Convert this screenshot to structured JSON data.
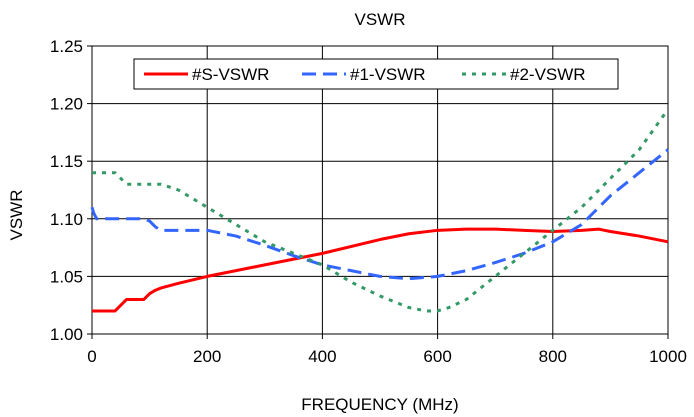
{
  "chart_data": {
    "type": "line",
    "title": "VSWR",
    "xlabel": "FREQUENCY (MHz)",
    "ylabel": "VSWR",
    "xlim": [
      0,
      1000
    ],
    "ylim": [
      1.0,
      1.25
    ],
    "x_ticks": [
      "0",
      "200",
      "400",
      "600",
      "800",
      "1000"
    ],
    "y_ticks": [
      "1.00",
      "1.05",
      "1.10",
      "1.15",
      "1.20",
      "1.25"
    ],
    "grid": true,
    "legend_position": "top",
    "series": [
      {
        "name": "#S-VSWR",
        "color": "#ff0000",
        "dash": "solid",
        "x": [
          0,
          10,
          20,
          30,
          40,
          50,
          60,
          70,
          80,
          90,
          100,
          110,
          120,
          150,
          200,
          300,
          400,
          500,
          550,
          600,
          650,
          700,
          750,
          800,
          850,
          880,
          900,
          950,
          1000
        ],
        "y": [
          1.02,
          1.02,
          1.02,
          1.02,
          1.02,
          1.025,
          1.03,
          1.03,
          1.03,
          1.03,
          1.035,
          1.038,
          1.04,
          1.044,
          1.05,
          1.06,
          1.07,
          1.082,
          1.087,
          1.09,
          1.091,
          1.091,
          1.09,
          1.089,
          1.09,
          1.091,
          1.089,
          1.085,
          1.08
        ]
      },
      {
        "name": "#1-VSWR",
        "color": "#3366ff",
        "dash": "dashed",
        "x": [
          0,
          3,
          8,
          15,
          30,
          50,
          70,
          90,
          100,
          110,
          120,
          150,
          200,
          250,
          300,
          350,
          400,
          450,
          500,
          550,
          600,
          650,
          700,
          750,
          800,
          850,
          900,
          950,
          1000
        ],
        "y": [
          1.11,
          1.105,
          1.1,
          1.1,
          1.1,
          1.1,
          1.1,
          1.1,
          1.098,
          1.093,
          1.09,
          1.09,
          1.09,
          1.085,
          1.077,
          1.068,
          1.06,
          1.055,
          1.05,
          1.048,
          1.05,
          1.055,
          1.062,
          1.07,
          1.08,
          1.095,
          1.12,
          1.14,
          1.16
        ]
      },
      {
        "name": "#2-VSWR",
        "color": "#339966",
        "dash": "dotted",
        "x": [
          0,
          10,
          20,
          30,
          40,
          50,
          60,
          70,
          80,
          90,
          100,
          110,
          120,
          150,
          200,
          250,
          300,
          350,
          400,
          450,
          500,
          550,
          580,
          600,
          620,
          650,
          700,
          750,
          800,
          850,
          900,
          950,
          1000
        ],
        "y": [
          1.14,
          1.14,
          1.14,
          1.14,
          1.14,
          1.135,
          1.13,
          1.13,
          1.13,
          1.13,
          1.13,
          1.13,
          1.13,
          1.125,
          1.11,
          1.095,
          1.08,
          1.07,
          1.06,
          1.045,
          1.033,
          1.023,
          1.02,
          1.02,
          1.023,
          1.03,
          1.05,
          1.07,
          1.09,
          1.11,
          1.135,
          1.16,
          1.195
        ]
      }
    ]
  }
}
